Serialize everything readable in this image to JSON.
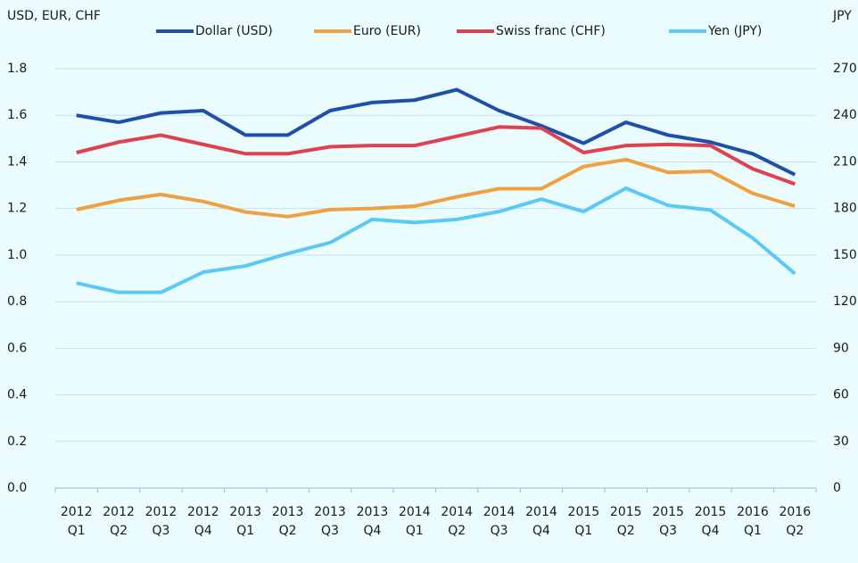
{
  "chart_data": {
    "type": "line",
    "y_axis_label": "USD, EUR,  CHF",
    "y2_axis_label": "JPY",
    "categories": [
      [
        "2012",
        "Q1"
      ],
      [
        "2012",
        "Q2"
      ],
      [
        "2012",
        "Q3"
      ],
      [
        "2012",
        "Q4"
      ],
      [
        "2013",
        "Q1"
      ],
      [
        "2013",
        "Q2"
      ],
      [
        "2013",
        "Q3"
      ],
      [
        "2013",
        "Q4"
      ],
      [
        "2014",
        "Q1"
      ],
      [
        "2014",
        "Q2"
      ],
      [
        "2014",
        "Q3"
      ],
      [
        "2014",
        "Q4"
      ],
      [
        "2015",
        "Q1"
      ],
      [
        "2015",
        "Q2"
      ],
      [
        "2015",
        "Q3"
      ],
      [
        "2015",
        "Q4"
      ],
      [
        "2016",
        "Q1"
      ],
      [
        "2016",
        "Q2"
      ]
    ],
    "series": [
      {
        "name": "Dollar (USD)",
        "color": "#1f4fa8",
        "values": [
          1.6,
          1.57,
          1.61,
          1.62,
          1.515,
          1.515,
          1.62,
          1.655,
          1.665,
          1.71,
          1.62,
          1.555,
          1.48,
          1.57,
          1.515,
          1.485,
          1.435,
          1.345
        ]
      },
      {
        "name": "Euro (EUR)",
        "color": "#f0a040",
        "values": [
          1.195,
          1.235,
          1.26,
          1.23,
          1.185,
          1.165,
          1.195,
          1.2,
          1.21,
          1.25,
          1.285,
          1.285,
          1.38,
          1.41,
          1.355,
          1.36,
          1.265,
          1.21
        ]
      },
      {
        "name": "Swiss franc (CHF)",
        "color": "#e0404f",
        "values": [
          1.44,
          1.485,
          1.515,
          1.475,
          1.435,
          1.435,
          1.465,
          1.47,
          1.47,
          1.51,
          1.55,
          1.545,
          1.44,
          1.47,
          1.475,
          1.47,
          1.37,
          1.305
        ]
      },
      {
        "name": "Yen (JPY)",
        "color": "#5cc8f5",
        "axis": "y2",
        "values": [
          132,
          126,
          126,
          139,
          143,
          151,
          158,
          173,
          171,
          173,
          178,
          186,
          178,
          193,
          182,
          179,
          161,
          138
        ]
      }
    ],
    "ylim": [
      0,
      1.8
    ],
    "yticks": [
      {
        "value": 0,
        "label": "0.0"
      },
      0.2,
      0.4,
      0.6,
      0.8,
      {
        "value": 1,
        "label": "1.0"
      },
      1.2,
      1.4,
      1.6,
      1.8
    ],
    "y2lim": [
      0,
      270
    ],
    "y2ticks": [
      0,
      30,
      60,
      90,
      120,
      150,
      180,
      210,
      240,
      270
    ],
    "grid": true,
    "legend": "top"
  }
}
